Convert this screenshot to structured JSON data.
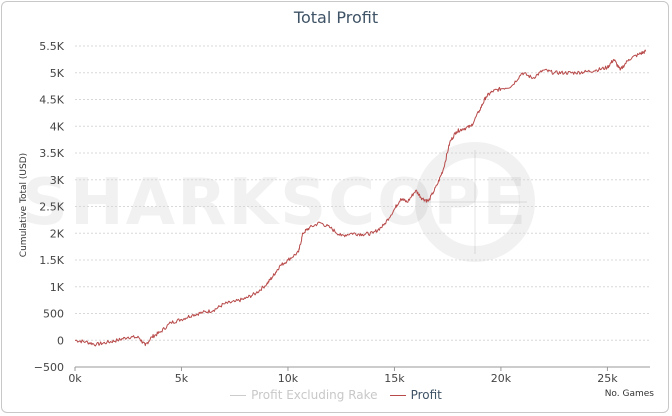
{
  "chart_data": {
    "type": "line",
    "title": "Total Profit",
    "ylabel": "Cumulative Total (USD)",
    "xlabel": "No. Games",
    "ylim": [
      -500,
      5500
    ],
    "xlim": [
      0,
      27000
    ],
    "yticks": [
      -500,
      0,
      500,
      1000,
      1500,
      2000,
      2500,
      3000,
      3500,
      4000,
      4500,
      5000,
      5500
    ],
    "ytick_labels": [
      "−500",
      "0",
      "500",
      "1K",
      "1.5K",
      "2K",
      "2.5K",
      "3K",
      "3.5K",
      "4K",
      "4.5K",
      "5K",
      "5.5K"
    ],
    "xticks": [
      0,
      5000,
      10000,
      15000,
      20000,
      25000
    ],
    "xtick_labels": [
      "0k",
      "5k",
      "10k",
      "15k",
      "20k",
      "25k"
    ],
    "watermark": "SHARKSCOPE",
    "series": [
      {
        "name": "Profit Excluding Rake",
        "color": "#cccccc",
        "x": [],
        "values": []
      },
      {
        "name": "Profit",
        "color": "#b84a4a",
        "x": [
          0,
          500,
          1000,
          1500,
          2000,
          2500,
          3000,
          3300,
          3600,
          4000,
          4500,
          5000,
          5500,
          6000,
          6500,
          7000,
          7500,
          8000,
          8500,
          9000,
          9300,
          9600,
          10000,
          10500,
          10700,
          11000,
          11500,
          12000,
          12500,
          13000,
          13500,
          14000,
          14500,
          15000,
          15300,
          15600,
          16000,
          16300,
          16600,
          17000,
          17300,
          17600,
          17900,
          18200,
          18600,
          19000,
          19300,
          19600,
          20000,
          20500,
          21000,
          21500,
          22000,
          22500,
          23000,
          23500,
          24000,
          24500,
          25000,
          25300,
          25600,
          26000,
          26500,
          26800
        ],
        "values": [
          0,
          -30,
          -80,
          -40,
          0,
          60,
          50,
          -100,
          60,
          150,
          330,
          390,
          470,
          520,
          560,
          680,
          720,
          780,
          880,
          1050,
          1200,
          1380,
          1500,
          1650,
          2000,
          2100,
          2200,
          2100,
          1950,
          2000,
          1980,
          2000,
          2150,
          2450,
          2650,
          2580,
          2800,
          2650,
          2600,
          2900,
          3200,
          3700,
          3900,
          3950,
          4000,
          4300,
          4550,
          4650,
          4700,
          4750,
          5000,
          4900,
          5050,
          5000,
          5000,
          5000,
          5020,
          5050,
          5100,
          5250,
          5050,
          5250,
          5350,
          5400
        ]
      }
    ]
  }
}
